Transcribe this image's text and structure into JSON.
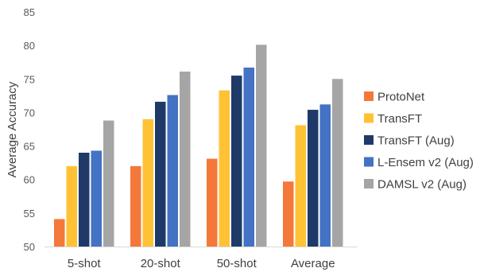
{
  "chart_data": {
    "type": "bar",
    "ylabel": "Average Accuracy",
    "ylim": [
      50,
      85
    ],
    "yticks": [
      "50",
      "55",
      "60",
      "65",
      "70",
      "75",
      "80",
      "85"
    ],
    "grid": false,
    "legend_position": "right",
    "categories": [
      "5-shot",
      "20-shot",
      "50-shot",
      "Average"
    ],
    "series": [
      {
        "name": "ProtoNet",
        "color": "#F4783A",
        "values": [
          54.1,
          62.0,
          63.1,
          59.7
        ]
      },
      {
        "name": "TransFT",
        "color": "#FFC235",
        "values": [
          62.0,
          69.0,
          73.3,
          68.1
        ]
      },
      {
        "name": "TransFT (Aug)",
        "color": "#1F3A68",
        "values": [
          64.0,
          71.6,
          75.5,
          70.4
        ]
      },
      {
        "name": "L-Ensem v2 (Aug)",
        "color": "#4472C4",
        "values": [
          64.3,
          72.6,
          76.7,
          71.2
        ]
      },
      {
        "name": "DAMSL v2 (Aug)",
        "color": "#A5A5A5",
        "values": [
          68.8,
          76.1,
          80.1,
          75.0
        ]
      }
    ]
  }
}
